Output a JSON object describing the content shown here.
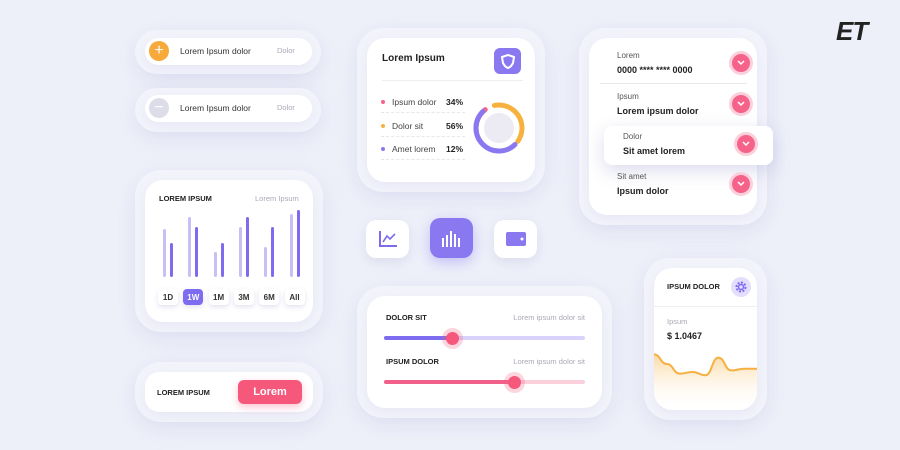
{
  "logo": "ET",
  "list_pills": [
    {
      "icon": "plus-icon",
      "label": "Lorem Ipsum dolor",
      "value": "Dolor",
      "color": "#f7a93a"
    },
    {
      "icon": "minus-icon",
      "label": "Lorem Ipsum dolor",
      "value": "Dolor",
      "color": "#dcdde8"
    }
  ],
  "bar_card": {
    "title": "LOREM IPSUM",
    "subtitle": "Lorem Ipsum",
    "chart_data": {
      "type": "bar",
      "series": [
        {
          "values": [
            48,
            60,
            25,
            50,
            30,
            63
          ],
          "color": "#c8bff5"
        },
        {
          "values": [
            34,
            50,
            34,
            60,
            50,
            67
          ],
          "color": "#7d6cf0"
        }
      ]
    },
    "ranges": [
      "1D",
      "1W",
      "1M",
      "3M",
      "6M",
      "All"
    ],
    "active_range": "1W"
  },
  "cta_card": {
    "label": "LOREM IPSUM",
    "button": "Lorem"
  },
  "donut_card": {
    "title": "Lorem Ipsum",
    "icon": "shield-icon",
    "items": [
      {
        "label": "Ipsum dolor",
        "value": "34%",
        "color": "#f5628a"
      },
      {
        "label": "Dolor sit",
        "value": "56%",
        "color": "#f7b13f"
      },
      {
        "label": "Amet lorem",
        "value": "12%",
        "color": "#8a78f0"
      }
    ]
  },
  "icon_buttons": [
    {
      "icon": "line-chart-icon",
      "active": false
    },
    {
      "icon": "bar-chart-icon",
      "active": true
    },
    {
      "icon": "wallet-icon",
      "active": false
    }
  ],
  "sliders": [
    {
      "label": "DOLOR SIT",
      "hint": "Lorem ipsum dolor sit",
      "value": 34,
      "color": "#7d6cf0",
      "track": "#d9d2fa"
    },
    {
      "label": "IPSUM DOLOR",
      "hint": "Lorem ipsum dolor sit",
      "value": 65,
      "color": "#f0608a",
      "track": "#fbd0dc"
    }
  ],
  "accordion": [
    {
      "label": "Lorem",
      "value": "0000 **** **** 0000"
    },
    {
      "label": "Ipsum",
      "value": "Lorem ipsum dolor"
    },
    {
      "label": "Dolor",
      "value": "Sit amet lorem",
      "highlighted": true
    },
    {
      "label": "Sit amet",
      "value": "Ipsum dolor"
    }
  ],
  "price_card": {
    "title": "IPSUM DOLOR",
    "icon": "gear-icon",
    "label": "Ipsum",
    "value": "$ 1.0467",
    "chart_data": {
      "type": "area",
      "values": [
        8,
        5,
        2,
        2.5,
        1.5,
        7,
        3,
        3.5,
        3.5
      ],
      "color": "#f5b041"
    }
  }
}
